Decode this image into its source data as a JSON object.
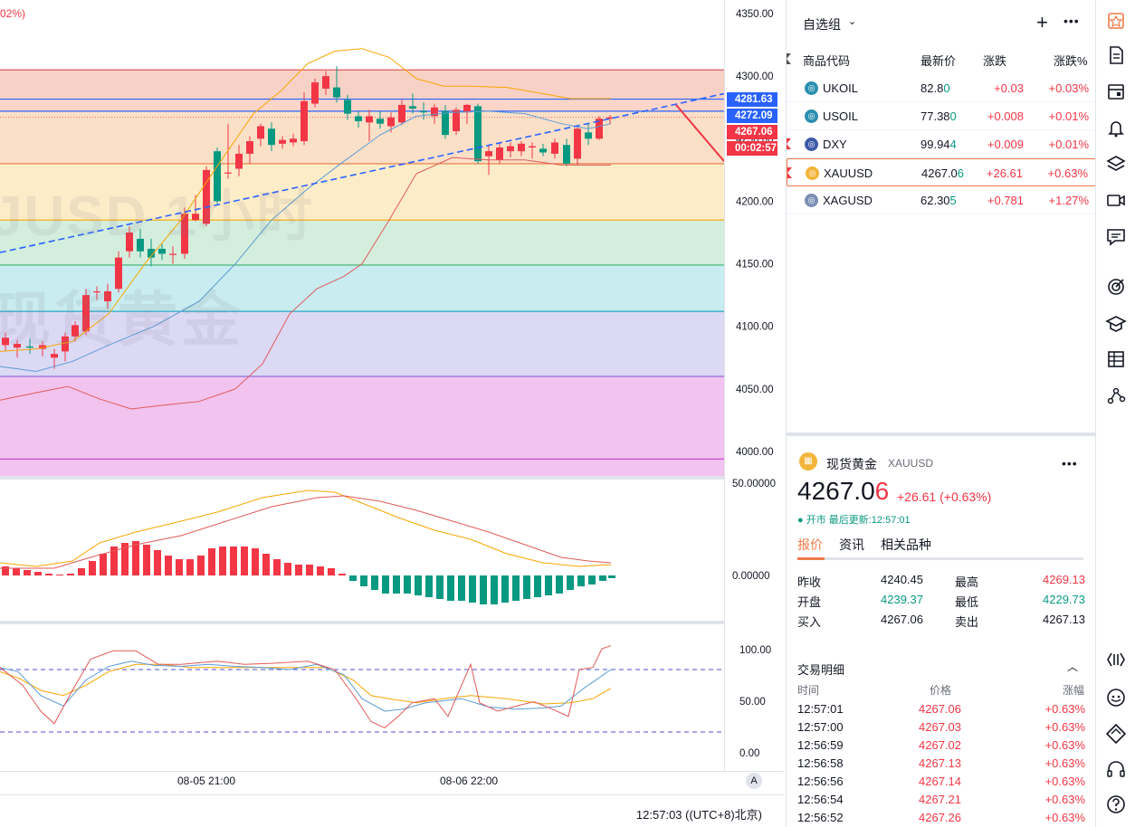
{
  "chart": {
    "top_change_pct": "02%)",
    "watermark_symbol": "JUSD 1小时",
    "watermark_name": "现货黄金",
    "price_axis": [
      "4350.00",
      "4300.00",
      "4250.00",
      "4200.00",
      "4150.00",
      "4100.00",
      "4050.00",
      "4000.00"
    ],
    "price_tags": [
      {
        "label": "4281.63",
        "color": "#2962ff"
      },
      {
        "label": "4272.09",
        "color": "#2962ff"
      },
      {
        "label": "4267.06",
        "color": "#f23645"
      },
      {
        "label": "00:02:57",
        "color": "#f23645"
      }
    ],
    "macd_axis": [
      "50.00000",
      "0.00000"
    ],
    "kdj_axis": [
      "100.00",
      "50.00",
      "0.00"
    ],
    "kdj_levels": [
      "80",
      "20"
    ],
    "time_axis": [
      "08-05 21:00",
      "08-06 22:00"
    ],
    "auto_label": "A",
    "status_time": "12:57:03 ((UTC+8)北京)",
    "colors": {
      "up": "#f23645",
      "down": "#089981",
      "ma_orange": "#f7a600",
      "ma_blue": "#5b9bd5",
      "ma_red": "#e05a5a"
    }
  },
  "watchlist": {
    "title": "自选组",
    "add_icon": "plus-icon",
    "more_icon": "more-icon",
    "columns": {
      "symbol": "商品代码",
      "last": "最新价",
      "change": "涨跌",
      "change_pct": "涨跌%"
    },
    "rows": [
      {
        "symbol": "UKOIL",
        "last_main": "82.8",
        "last_tail": "0",
        "change": "+0.03",
        "change_pct": "+0.03%",
        "icon_color": "#2c8fb0",
        "flag": false
      },
      {
        "symbol": "USOIL",
        "last_main": "77.38",
        "last_tail": "0",
        "change": "+0.008",
        "change_pct": "+0.01%",
        "icon_color": "#2c8fb0",
        "flag": false
      },
      {
        "symbol": "DXY",
        "last_main": "99.94",
        "last_tail": "4",
        "change": "+0.009",
        "change_pct": "+0.01%",
        "icon_color": "#3c5aa6",
        "flag": true
      },
      {
        "symbol": "XAUUSD",
        "last_main": "4267.0",
        "last_tail": "6",
        "change": "+26.61",
        "change_pct": "+0.63%",
        "icon_color": "#f2b53a",
        "flag": true
      },
      {
        "symbol": "XAGUSD",
        "last_main": "62.30",
        "last_tail": "5",
        "change": "+0.781",
        "change_pct": "+1.27%",
        "icon_color": "#7b8fb5",
        "flag": false
      }
    ]
  },
  "details": {
    "name": "现货黄金",
    "symbol": "XAUUSD",
    "price_main": "4267.0",
    "price_tail": "6",
    "change": "+26.61 (+0.63%)",
    "status": "● 开市 最后更新:12:57:01",
    "tabs": [
      "报价",
      "资讯",
      "相关品种"
    ],
    "quote": [
      {
        "l1": "昨收",
        "v1": "4240.45",
        "c1": "",
        "l2": "最高",
        "v2": "4269.13",
        "c2": "up"
      },
      {
        "l1": "开盘",
        "v1": "4239.37",
        "c1": "down",
        "l2": "最低",
        "v2": "4229.73",
        "c2": "down"
      },
      {
        "l1": "买入",
        "v1": "4267.06",
        "c1": "",
        "l2": "卖出",
        "v2": "4267.13",
        "c2": ""
      }
    ]
  },
  "trades": {
    "title": "交易明细",
    "columns": {
      "time": "时间",
      "price": "价格",
      "pct": "涨幅"
    },
    "rows": [
      {
        "time": "12:57:01",
        "price": "4267.06",
        "pct": "+0.63%"
      },
      {
        "time": "12:57:00",
        "price": "4267.03",
        "pct": "+0.63%"
      },
      {
        "time": "12:56:59",
        "price": "4267.02",
        "pct": "+0.63%"
      },
      {
        "time": "12:56:58",
        "price": "4267.13",
        "pct": "+0.63%"
      },
      {
        "time": "12:56:56",
        "price": "4267.14",
        "pct": "+0.63%"
      },
      {
        "time": "12:56:54",
        "price": "4267.21",
        "pct": "+0.63%"
      },
      {
        "time": "12:56:52",
        "price": "4267.26",
        "pct": "+0.63%"
      }
    ]
  },
  "toolbar": {
    "icons": [
      "watchlist-icon",
      "notes-icon",
      "calendar-icon",
      "alert-bell-icon",
      "layers-icon",
      "video-icon",
      "chat-icon",
      "target-icon",
      "education-icon",
      "table-icon",
      "network-icon",
      "data-window-icon",
      "community-icon",
      "broker-icon",
      "support-icon",
      "help-icon"
    ]
  }
}
